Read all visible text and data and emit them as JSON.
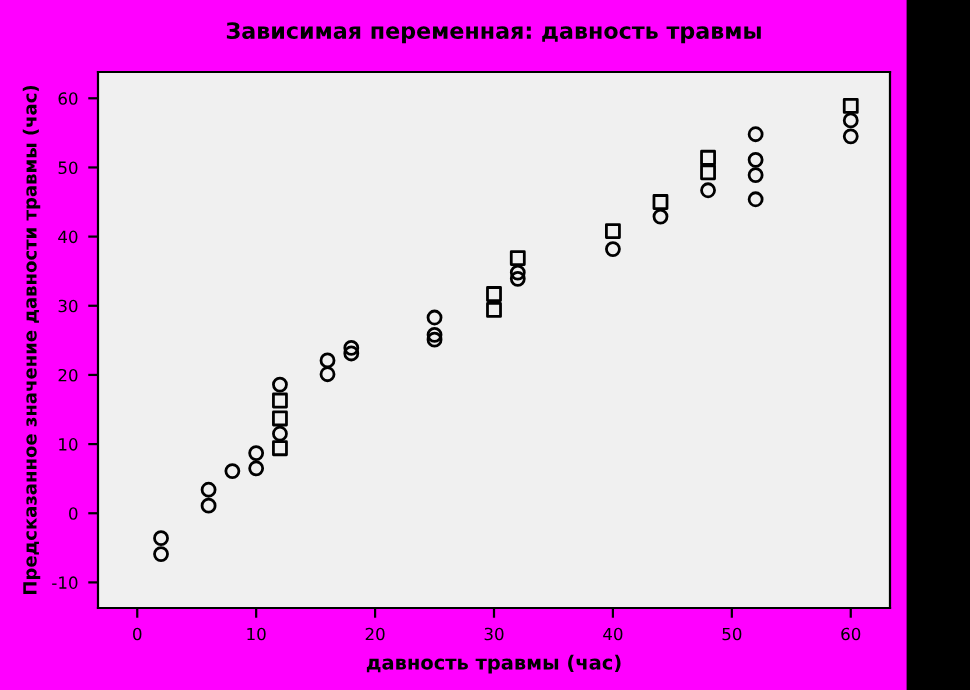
{
  "chart_data": {
    "type": "scatter",
    "title": "Зависимая переменная: давность травмы",
    "xlabel": "давность травмы (час)",
    "ylabel": "Предсказанное значение давности травмы (час)",
    "series": [
      {
        "color": "#000000",
        "marker": "circle",
        "x": [
          2,
          2,
          6,
          6,
          8,
          10,
          10,
          12,
          12,
          16,
          16,
          18,
          18,
          25,
          25,
          25,
          32,
          32,
          40,
          44,
          48,
          52,
          52,
          52,
          52,
          60,
          60
        ],
        "values": [
          -3.6,
          -5.9,
          3.4,
          1.1,
          6.1,
          8.7,
          6.5,
          18.6,
          11.5,
          22.1,
          20.1,
          23.9,
          23.1,
          28.3,
          25.8,
          25.1,
          34.8,
          33.9,
          38.2,
          42.9,
          46.7,
          54.8,
          51.1,
          48.9,
          45.4,
          56.8,
          54.5
        ]
      },
      {
        "color": "#000000",
        "marker": "square",
        "x": [
          12,
          12,
          12,
          30,
          30,
          32,
          40,
          44,
          48,
          48,
          60
        ],
        "values": [
          16.3,
          13.7,
          9.4,
          31.7,
          29.4,
          36.9,
          40.8,
          45.0,
          51.4,
          49.3,
          58.9
        ]
      }
    ],
    "xlim": [
      -3.3,
      63.3
    ],
    "ylim": [
      -13.7,
      63.8
    ],
    "xticks": [
      0,
      10,
      20,
      30,
      40,
      50,
      60
    ],
    "yticks": [
      -10,
      0,
      10,
      20,
      30,
      40,
      50,
      60
    ],
    "grid": false,
    "legend": false
  }
}
